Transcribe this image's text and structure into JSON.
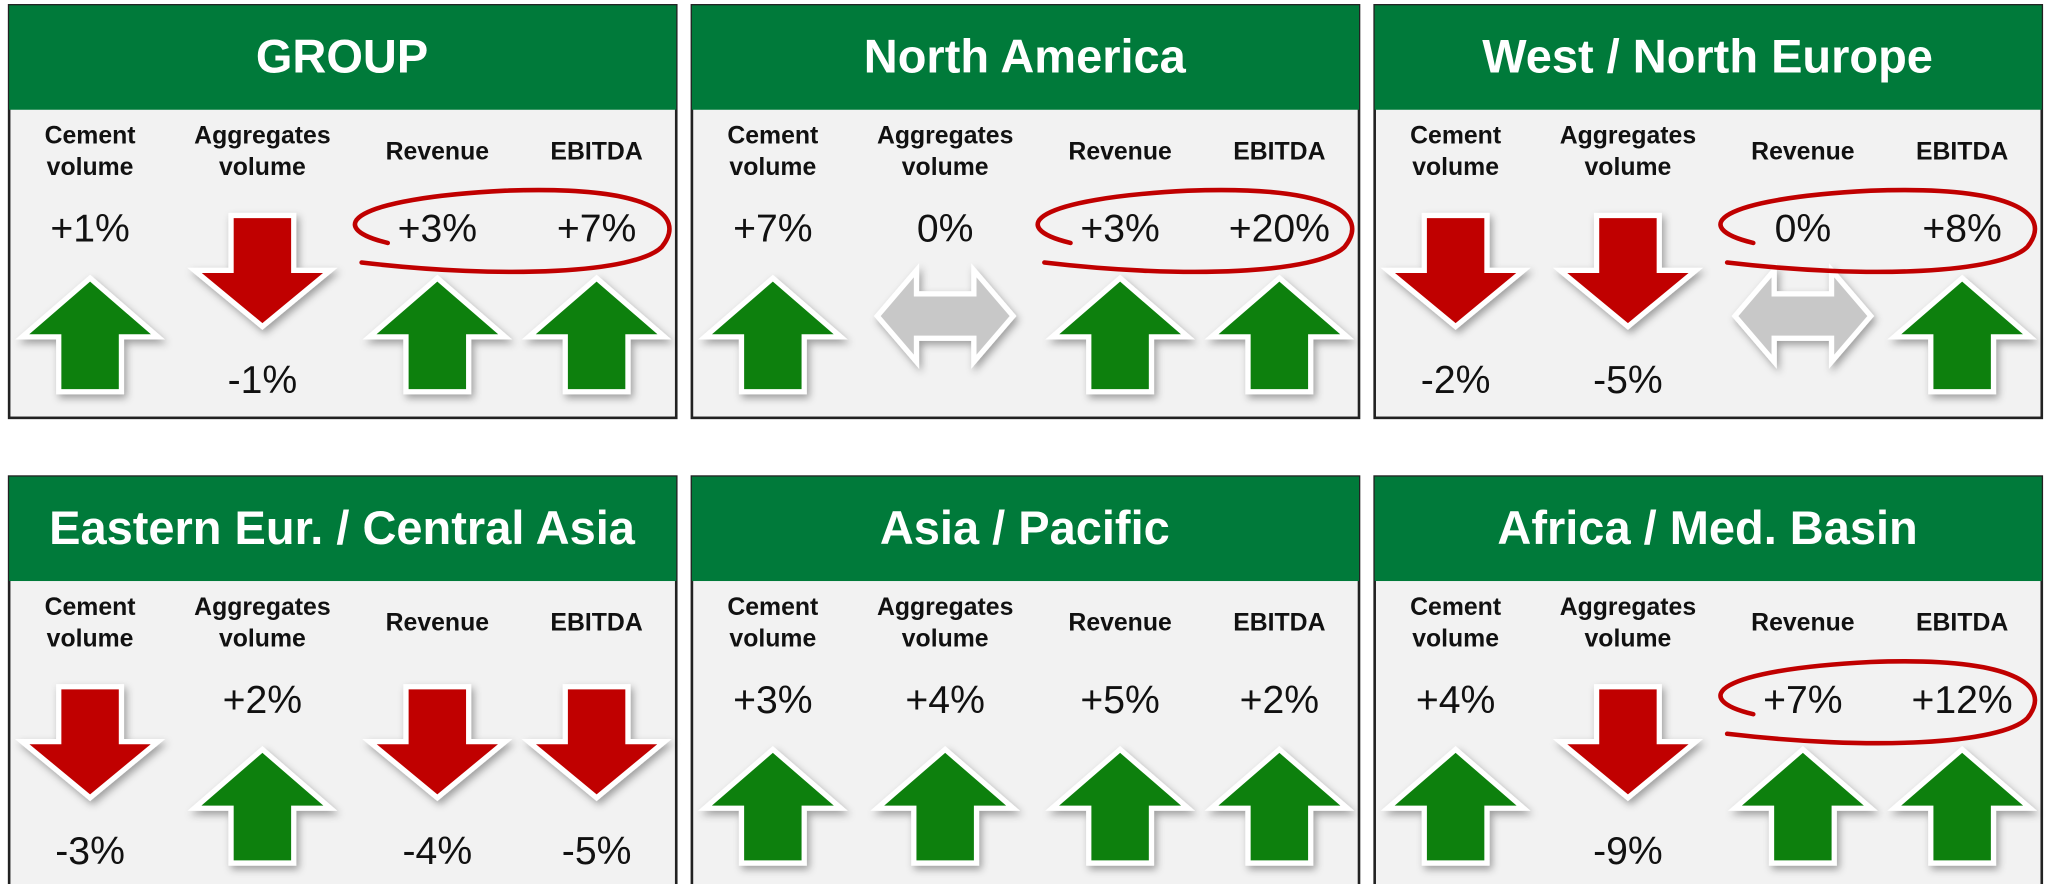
{
  "panels": [
    {
      "title": "GROUP",
      "highlight": true,
      "metrics": [
        {
          "label": [
            "Cement",
            "volume"
          ],
          "value": "+1%",
          "arrow": "up"
        },
        {
          "label": [
            "Aggregates",
            "volume"
          ],
          "value": "-1%",
          "arrow": "down"
        },
        {
          "label": [
            "Revenue"
          ],
          "value": "+3%",
          "arrow": "up"
        },
        {
          "label": [
            "EBITDA"
          ],
          "value": "+7%",
          "arrow": "up"
        }
      ]
    },
    {
      "title": "North America",
      "highlight": true,
      "metrics": [
        {
          "label": [
            "Cement",
            "volume"
          ],
          "value": "+7%",
          "arrow": "up"
        },
        {
          "label": [
            "Aggregates",
            "volume"
          ],
          "value": "0%",
          "arrow": "flat"
        },
        {
          "label": [
            "Revenue"
          ],
          "value": "+3%",
          "arrow": "up"
        },
        {
          "label": [
            "EBITDA"
          ],
          "value": "+20%",
          "arrow": "up"
        }
      ]
    },
    {
      "title": "West / North Europe",
      "highlight": true,
      "metrics": [
        {
          "label": [
            "Cement",
            "volume"
          ],
          "value": "-2%",
          "arrow": "down"
        },
        {
          "label": [
            "Aggregates",
            "volume"
          ],
          "value": "-5%",
          "arrow": "down"
        },
        {
          "label": [
            "Revenue"
          ],
          "value": "0%",
          "arrow": "flat"
        },
        {
          "label": [
            "EBITDA"
          ],
          "value": "+8%",
          "arrow": "up"
        }
      ]
    },
    {
      "title": "Eastern Eur. / Central Asia",
      "highlight": false,
      "metrics": [
        {
          "label": [
            "Cement",
            "volume"
          ],
          "value": "-3%",
          "arrow": "down"
        },
        {
          "label": [
            "Aggregates",
            "volume"
          ],
          "value": "+2%",
          "arrow": "up"
        },
        {
          "label": [
            "Revenue"
          ],
          "value": "-4%",
          "arrow": "down"
        },
        {
          "label": [
            "EBITDA"
          ],
          "value": "-5%",
          "arrow": "down"
        }
      ]
    },
    {
      "title": "Asia / Pacific",
      "highlight": false,
      "metrics": [
        {
          "label": [
            "Cement",
            "volume"
          ],
          "value": "+3%",
          "arrow": "up"
        },
        {
          "label": [
            "Aggregates",
            "volume"
          ],
          "value": "+4%",
          "arrow": "up"
        },
        {
          "label": [
            "Revenue"
          ],
          "value": "+5%",
          "arrow": "up"
        },
        {
          "label": [
            "EBITDA"
          ],
          "value": "+2%",
          "arrow": "up"
        }
      ]
    },
    {
      "title": "Africa / Med. Basin",
      "highlight": true,
      "metrics": [
        {
          "label": [
            "Cement",
            "volume"
          ],
          "value": "+4%",
          "arrow": "up"
        },
        {
          "label": [
            "Aggregates",
            "volume"
          ],
          "value": "-9%",
          "arrow": "down"
        },
        {
          "label": [
            "Revenue"
          ],
          "value": "+7%",
          "arrow": "up"
        },
        {
          "label": [
            "EBITDA"
          ],
          "value": "+12%",
          "arrow": "up"
        }
      ]
    }
  ]
}
